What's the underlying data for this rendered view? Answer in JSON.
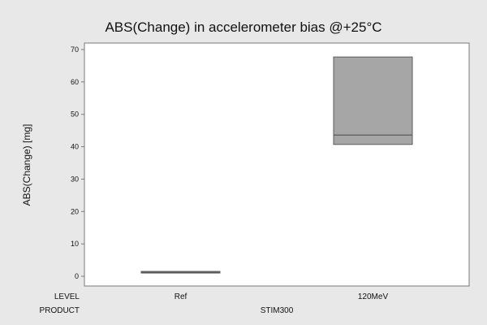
{
  "chart_data": {
    "type": "box",
    "title": "ABS(Change) in accelerometer bias @+25°C",
    "ylabel": "ABS(Change) [mg]",
    "xlabel": "",
    "ylim": [
      -3,
      72
    ],
    "yticks": [
      0,
      10,
      20,
      30,
      40,
      50,
      60,
      70
    ],
    "ytick_labels": [
      "0",
      "10",
      "20",
      "30",
      "40",
      "50",
      "60",
      "70"
    ],
    "grid": false,
    "legend": "none",
    "categories": [
      "Ref",
      "120MeV"
    ],
    "x_groups": [
      {
        "label": "LEVEL",
        "values": [
          "Ref",
          "120MeV"
        ]
      },
      {
        "label": "PRODUCT",
        "values": [
          "STIM300"
        ]
      }
    ],
    "boxes": [
      {
        "category": "Ref",
        "q1": 1.0,
        "median": 1.2,
        "q3": 1.4
      },
      {
        "category": "120MeV",
        "q1": 40.7,
        "median": 43.6,
        "q3": 67.7
      }
    ],
    "colors": {
      "background": "#e8e8e8",
      "plot_area": "#ffffff",
      "box_fill": "#a6a6a6",
      "box_stroke": "#5a5a5a",
      "axis": "#7a7a7a"
    }
  }
}
